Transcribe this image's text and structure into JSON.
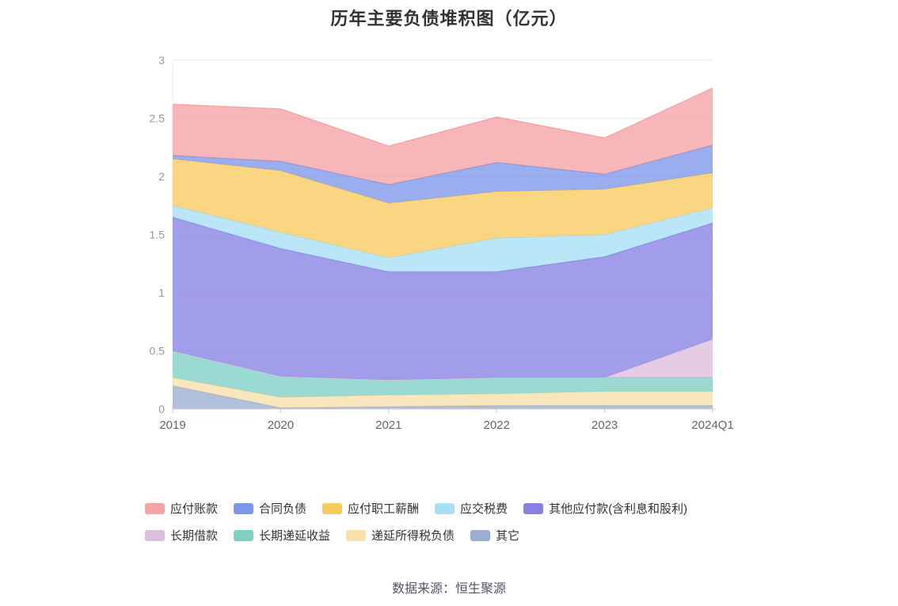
{
  "title": "历年主要负债堆积图（亿元）",
  "footer": "数据来源：恒生聚源",
  "chart_data": {
    "type": "area",
    "stacked": true,
    "title": "历年主要负债堆积图（亿元）",
    "x": [
      "2019",
      "2020",
      "2021",
      "2022",
      "2023",
      "2024Q1"
    ],
    "ylim": [
      0,
      3
    ],
    "ytick_interval": 0.5,
    "yticks": [
      0,
      0.5,
      1,
      1.5,
      2,
      2.5,
      3
    ],
    "grid": true,
    "legend_position": "bottom",
    "unit": "亿元",
    "series": [
      {
        "name": "其它",
        "color": "#9AAED2",
        "values": [
          0.2,
          0.01,
          0.02,
          0.03,
          0.03,
          0.03
        ]
      },
      {
        "name": "递延所得税负债",
        "color": "#F9DFA9",
        "values": [
          0.07,
          0.09,
          0.1,
          0.1,
          0.12,
          0.12
        ]
      },
      {
        "name": "长期递延收益",
        "color": "#7ED0C5",
        "values": [
          0.23,
          0.18,
          0.13,
          0.14,
          0.12,
          0.12
        ]
      },
      {
        "name": "长期借款",
        "color": "#DCBEDE",
        "values": [
          0.0,
          0.0,
          0.0,
          0.0,
          0.0,
          0.33
        ]
      },
      {
        "name": "其他应付款(含利息和股利)",
        "color": "#8881E6",
        "values": [
          1.15,
          1.1,
          0.93,
          0.91,
          1.04,
          1.0
        ]
      },
      {
        "name": "应交税费",
        "color": "#A8DFF5",
        "values": [
          0.1,
          0.14,
          0.12,
          0.29,
          0.19,
          0.13
        ]
      },
      {
        "name": "应付职工薪酬",
        "color": "#F8CB5F",
        "values": [
          0.4,
          0.53,
          0.47,
          0.4,
          0.39,
          0.3
        ]
      },
      {
        "name": "合同负债",
        "color": "#7D96EA",
        "values": [
          0.03,
          0.08,
          0.16,
          0.25,
          0.13,
          0.24
        ]
      },
      {
        "name": "应付账款",
        "color": "#F5A3A4",
        "values": [
          0.44,
          0.45,
          0.33,
          0.39,
          0.31,
          0.49
        ]
      }
    ],
    "legend_order_note": "legend displays series reversed (top of stack first)"
  },
  "axis_style": {
    "y_label_color": "#999999",
    "x_label_color": "#666666",
    "grid_color": "#e9e9e9",
    "axis_color": "#cccccc"
  }
}
